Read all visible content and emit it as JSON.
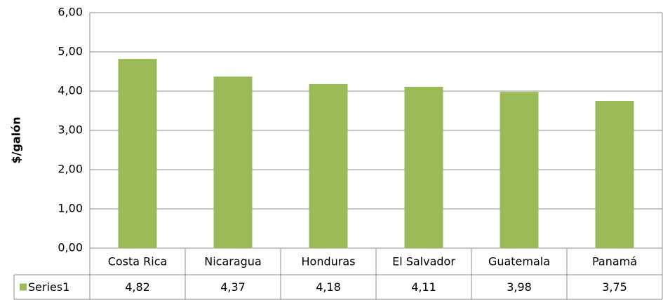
{
  "chart_data": {
    "type": "bar",
    "ylabel": "$/galón",
    "categories": [
      "Costa Rica",
      "Nicaragua",
      "Honduras",
      "El Salvador",
      "Guatemala",
      "Panamá"
    ],
    "series": [
      {
        "name": "Series1",
        "color": "#9bbb59",
        "values": [
          4.82,
          4.37,
          4.18,
          4.11,
          3.98,
          3.75
        ],
        "value_labels": [
          "4,82",
          "4,37",
          "4,18",
          "4,11",
          "3,98",
          "3,75"
        ]
      }
    ],
    "ylim": [
      0,
      6
    ],
    "yticks": [
      {
        "value": 0,
        "label": "0,00"
      },
      {
        "value": 1,
        "label": "1,00"
      },
      {
        "value": 2,
        "label": "2,00"
      },
      {
        "value": 3,
        "label": "3,00"
      },
      {
        "value": 4,
        "label": "4,00"
      },
      {
        "value": 5,
        "label": "5,00"
      },
      {
        "value": 6,
        "label": "6,00"
      }
    ],
    "grid": true
  }
}
